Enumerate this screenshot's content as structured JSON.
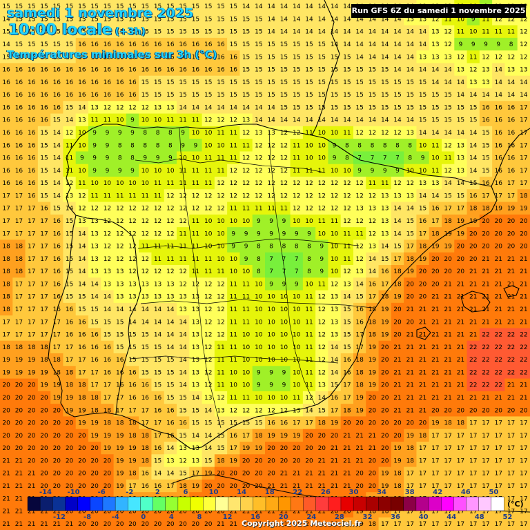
{
  "header": {
    "date": "samedi 1 novembre 2025",
    "time": "10:00 locale",
    "offset": "(+3h)",
    "subtitle": "Températures minimales sur 3h (°C)",
    "run": "Run GFS 6Z du samedi 1 novembre 2025"
  },
  "footer": {
    "copyright": "Copyright 2025 Meteociel.fr",
    "unit": "(°C)"
  },
  "legend": {
    "labels_top": [
      "-14",
      "-10",
      "-6",
      "-2",
      "2",
      "6",
      "10",
      "14",
      "18",
      "22",
      "26",
      "30",
      "34",
      "38",
      "42",
      "46",
      "50"
    ],
    "labels_bottom": [
      "-12",
      "-8",
      "-4",
      "0",
      "4",
      "8",
      "12",
      "16",
      "20",
      "24",
      "28",
      "32",
      "36",
      "40",
      "44",
      "48",
      "52"
    ],
    "colors": [
      "#06063c",
      "#0a1e6e",
      "#0a3296",
      "#0000c8",
      "#0000ff",
      "#0a46ff",
      "#1e78ff",
      "#32b4ff",
      "#46e6ff",
      "#50ffc8",
      "#64ff64",
      "#96ff32",
      "#c8ff00",
      "#f0ff00",
      "#ffff3c",
      "#ffff96",
      "#ffe66e",
      "#ffd24b",
      "#ffbe28",
      "#ffaa14",
      "#ff9600",
      "#ff7814",
      "#ff5a28",
      "#ff3c3c",
      "#ff1e1e",
      "#e60000",
      "#c80000",
      "#aa0000",
      "#8c0000",
      "#780000",
      "#8c0046",
      "#b4008c",
      "#dc00c8",
      "#ff00ff",
      "#ff50ff",
      "#ff96ff",
      "#ffc8ff",
      "#ffffff"
    ]
  },
  "temperature_grid": [
    [
      15,
      15,
      15,
      15,
      15,
      15,
      15,
      15,
      15,
      15,
      15,
      15,
      15,
      15,
      15,
      15,
      15,
      15,
      15,
      14,
      14,
      14,
      14,
      14,
      14,
      14,
      14,
      14,
      14,
      14,
      14,
      14,
      14,
      13,
      13,
      12,
      11,
      10,
      9,
      12,
      12,
      12
    ],
    [
      14,
      15,
      15,
      15,
      15,
      15,
      15,
      15,
      15,
      15,
      15,
      15,
      15,
      15,
      15,
      15,
      15,
      15,
      15,
      15,
      15,
      14,
      14,
      14,
      14,
      14,
      14,
      14,
      14,
      14,
      14,
      14,
      13,
      13,
      12,
      11,
      10,
      9,
      11,
      12,
      12,
      12
    ],
    [
      15,
      15,
      15,
      15,
      15,
      15,
      15,
      15,
      15,
      15,
      15,
      15,
      15,
      15,
      15,
      15,
      15,
      15,
      15,
      15,
      15,
      14,
      14,
      14,
      14,
      14,
      14,
      14,
      14,
      14,
      14,
      14,
      14,
      14,
      13,
      12,
      11,
      10,
      11,
      11,
      11,
      12
    ],
    [
      14,
      15,
      15,
      15,
      15,
      15,
      16,
      16,
      16,
      16,
      16,
      16,
      16,
      16,
      16,
      16,
      16,
      16,
      15,
      15,
      15,
      15,
      15,
      15,
      15,
      15,
      14,
      14,
      14,
      14,
      14,
      14,
      14,
      14,
      13,
      12,
      9,
      9,
      9,
      9,
      8,
      12
    ],
    [
      15,
      15,
      15,
      15,
      15,
      15,
      16,
      16,
      16,
      16,
      16,
      16,
      16,
      16,
      16,
      16,
      16,
      16,
      16,
      15,
      15,
      15,
      15,
      15,
      15,
      15,
      15,
      15,
      14,
      14,
      14,
      14,
      14,
      13,
      13,
      13,
      12,
      11,
      12,
      12,
      12,
      12
    ],
    [
      16,
      16,
      16,
      16,
      16,
      16,
      16,
      16,
      16,
      16,
      16,
      16,
      16,
      16,
      16,
      16,
      16,
      16,
      16,
      15,
      15,
      15,
      15,
      15,
      15,
      15,
      15,
      15,
      15,
      15,
      15,
      14,
      14,
      14,
      14,
      14,
      13,
      12,
      13,
      14,
      13,
      13
    ],
    [
      16,
      16,
      16,
      16,
      16,
      16,
      16,
      16,
      16,
      16,
      16,
      15,
      15,
      15,
      15,
      15,
      15,
      15,
      15,
      15,
      15,
      15,
      15,
      15,
      15,
      15,
      15,
      15,
      15,
      15,
      15,
      15,
      15,
      15,
      14,
      14,
      14,
      13,
      13,
      14,
      14,
      14
    ],
    [
      16,
      16,
      16,
      16,
      16,
      16,
      16,
      16,
      16,
      16,
      16,
      15,
      15,
      15,
      15,
      15,
      15,
      15,
      15,
      15,
      15,
      15,
      15,
      15,
      15,
      15,
      15,
      15,
      15,
      15,
      15,
      15,
      15,
      15,
      15,
      15,
      14,
      14,
      14,
      14,
      14,
      14
    ],
    [
      16,
      16,
      16,
      16,
      16,
      15,
      14,
      13,
      12,
      12,
      12,
      12,
      13,
      13,
      14,
      14,
      14,
      14,
      14,
      14,
      14,
      14,
      15,
      15,
      15,
      15,
      15,
      15,
      15,
      15,
      15,
      15,
      15,
      15,
      15,
      15,
      15,
      15,
      16,
      16,
      16,
      17
    ],
    [
      16,
      16,
      16,
      16,
      15,
      14,
      13,
      11,
      11,
      10,
      9,
      10,
      10,
      11,
      11,
      11,
      12,
      12,
      12,
      13,
      14,
      14,
      14,
      14,
      14,
      14,
      14,
      14,
      14,
      14,
      14,
      14,
      14,
      15,
      15,
      15,
      15,
      15,
      16,
      16,
      16,
      17
    ],
    [
      16,
      16,
      16,
      15,
      14,
      12,
      10,
      9,
      9,
      9,
      9,
      8,
      8,
      8,
      9,
      10,
      10,
      11,
      11,
      12,
      13,
      13,
      12,
      12,
      11,
      10,
      10,
      11,
      12,
      12,
      12,
      12,
      13,
      14,
      14,
      14,
      14,
      14,
      15,
      16,
      16,
      17
    ],
    [
      16,
      16,
      16,
      15,
      14,
      11,
      10,
      9,
      9,
      8,
      8,
      8,
      8,
      8,
      9,
      9,
      10,
      10,
      11,
      11,
      12,
      12,
      12,
      11,
      10,
      10,
      9,
      8,
      8,
      8,
      8,
      8,
      8,
      10,
      11,
      12,
      13,
      14,
      15,
      16,
      16,
      17
    ],
    [
      16,
      16,
      16,
      15,
      14,
      11,
      9,
      9,
      9,
      8,
      8,
      9,
      9,
      9,
      10,
      10,
      11,
      11,
      11,
      12,
      12,
      12,
      12,
      11,
      10,
      10,
      9,
      8,
      7,
      7,
      7,
      7,
      8,
      9,
      10,
      11,
      13,
      14,
      15,
      16,
      16,
      17
    ],
    [
      16,
      16,
      16,
      15,
      14,
      11,
      10,
      9,
      9,
      9,
      9,
      10,
      10,
      10,
      11,
      11,
      11,
      11,
      12,
      12,
      12,
      12,
      12,
      11,
      11,
      11,
      10,
      10,
      9,
      9,
      9,
      9,
      10,
      10,
      11,
      12,
      13,
      14,
      15,
      16,
      16,
      17
    ],
    [
      16,
      16,
      16,
      15,
      14,
      12,
      11,
      10,
      10,
      10,
      10,
      10,
      11,
      11,
      11,
      11,
      11,
      12,
      12,
      12,
      12,
      12,
      12,
      12,
      12,
      12,
      12,
      12,
      12,
      11,
      11,
      12,
      12,
      13,
      13,
      14,
      14,
      15,
      16,
      16,
      17,
      17
    ],
    [
      17,
      17,
      16,
      15,
      14,
      13,
      12,
      11,
      11,
      11,
      11,
      11,
      11,
      12,
      12,
      12,
      12,
      12,
      12,
      12,
      12,
      12,
      12,
      12,
      12,
      12,
      12,
      12,
      12,
      12,
      13,
      13,
      13,
      14,
      14,
      15,
      15,
      16,
      17,
      17,
      17,
      18
    ],
    [
      17,
      17,
      17,
      16,
      15,
      14,
      12,
      12,
      12,
      12,
      12,
      12,
      12,
      12,
      12,
      12,
      12,
      12,
      11,
      11,
      11,
      11,
      11,
      12,
      12,
      12,
      12,
      12,
      13,
      13,
      13,
      14,
      14,
      15,
      16,
      17,
      17,
      18,
      18,
      19,
      19,
      19
    ],
    [
      17,
      17,
      17,
      17,
      16,
      15,
      13,
      13,
      12,
      12,
      12,
      12,
      12,
      12,
      12,
      11,
      10,
      10,
      10,
      10,
      9,
      9,
      9,
      10,
      10,
      11,
      11,
      12,
      12,
      12,
      13,
      14,
      15,
      16,
      17,
      18,
      19,
      19,
      20,
      20,
      20,
      20
    ],
    [
      17,
      17,
      17,
      17,
      16,
      15,
      14,
      13,
      12,
      12,
      12,
      12,
      12,
      12,
      11,
      11,
      10,
      10,
      9,
      9,
      9,
      9,
      9,
      9,
      9,
      10,
      10,
      11,
      11,
      12,
      13,
      14,
      15,
      17,
      18,
      19,
      19,
      20,
      20,
      20,
      20,
      20
    ],
    [
      18,
      18,
      17,
      17,
      16,
      15,
      14,
      13,
      12,
      12,
      12,
      11,
      11,
      11,
      11,
      11,
      10,
      10,
      9,
      9,
      8,
      8,
      8,
      8,
      8,
      9,
      10,
      11,
      12,
      13,
      14,
      15,
      17,
      18,
      19,
      19,
      20,
      20,
      20,
      20,
      20,
      20
    ],
    [
      18,
      18,
      17,
      17,
      16,
      15,
      14,
      13,
      12,
      12,
      12,
      12,
      11,
      11,
      11,
      11,
      11,
      10,
      10,
      9,
      8,
      7,
      7,
      7,
      8,
      9,
      10,
      11,
      12,
      14,
      15,
      17,
      18,
      19,
      20,
      20,
      20,
      20,
      21,
      21,
      21,
      21
    ],
    [
      18,
      18,
      17,
      17,
      16,
      15,
      14,
      13,
      13,
      13,
      12,
      12,
      12,
      12,
      12,
      11,
      11,
      11,
      10,
      10,
      8,
      7,
      7,
      7,
      8,
      9,
      10,
      12,
      13,
      14,
      16,
      18,
      19,
      20,
      20,
      20,
      20,
      21,
      21,
      21,
      21,
      21
    ],
    [
      18,
      17,
      17,
      17,
      16,
      15,
      14,
      14,
      13,
      13,
      13,
      13,
      13,
      13,
      12,
      12,
      12,
      12,
      11,
      11,
      10,
      9,
      9,
      9,
      10,
      11,
      12,
      13,
      14,
      16,
      17,
      18,
      20,
      20,
      20,
      21,
      21,
      21,
      21,
      21,
      21,
      21
    ],
    [
      18,
      17,
      17,
      17,
      16,
      15,
      15,
      14,
      14,
      13,
      13,
      13,
      13,
      13,
      13,
      13,
      12,
      12,
      11,
      11,
      10,
      10,
      10,
      10,
      11,
      12,
      13,
      14,
      15,
      17,
      18,
      19,
      20,
      20,
      21,
      21,
      21,
      21,
      21,
      21,
      21,
      21
    ],
    [
      18,
      17,
      17,
      17,
      16,
      16,
      15,
      15,
      14,
      14,
      14,
      14,
      14,
      14,
      13,
      13,
      12,
      12,
      11,
      11,
      10,
      10,
      10,
      10,
      11,
      12,
      13,
      15,
      16,
      18,
      19,
      20,
      21,
      21,
      21,
      21,
      21,
      21,
      21,
      21,
      21,
      21
    ],
    [
      17,
      17,
      17,
      17,
      17,
      16,
      16,
      15,
      15,
      15,
      14,
      14,
      14,
      14,
      14,
      13,
      12,
      12,
      11,
      11,
      10,
      10,
      10,
      10,
      11,
      12,
      13,
      15,
      16,
      18,
      19,
      20,
      20,
      21,
      21,
      21,
      21,
      21,
      21,
      21,
      21,
      21
    ],
    [
      17,
      17,
      17,
      17,
      17,
      16,
      16,
      16,
      15,
      15,
      15,
      15,
      14,
      14,
      14,
      13,
      12,
      12,
      11,
      10,
      10,
      10,
      10,
      10,
      11,
      12,
      13,
      15,
      17,
      18,
      19,
      20,
      21,
      21,
      21,
      21,
      21,
      21,
      22,
      22,
      22,
      22
    ],
    [
      18,
      18,
      18,
      18,
      17,
      17,
      16,
      16,
      16,
      15,
      15,
      15,
      15,
      14,
      14,
      13,
      12,
      11,
      11,
      10,
      10,
      10,
      10,
      10,
      11,
      12,
      14,
      15,
      17,
      19,
      20,
      21,
      21,
      21,
      21,
      21,
      21,
      22,
      22,
      22,
      22,
      22
    ],
    [
      19,
      19,
      19,
      18,
      18,
      17,
      17,
      16,
      16,
      16,
      15,
      15,
      15,
      15,
      14,
      13,
      12,
      11,
      11,
      10,
      10,
      10,
      10,
      10,
      11,
      12,
      14,
      16,
      18,
      19,
      20,
      21,
      21,
      21,
      21,
      21,
      21,
      22,
      22,
      22,
      22,
      22
    ],
    [
      19,
      19,
      19,
      19,
      18,
      18,
      17,
      17,
      16,
      16,
      16,
      15,
      15,
      15,
      14,
      13,
      12,
      11,
      10,
      10,
      9,
      9,
      9,
      10,
      11,
      12,
      14,
      16,
      18,
      19,
      20,
      21,
      21,
      21,
      21,
      21,
      21,
      22,
      22,
      22,
      22,
      22
    ],
    [
      20,
      20,
      20,
      19,
      19,
      18,
      18,
      17,
      17,
      16,
      16,
      16,
      15,
      15,
      14,
      13,
      12,
      11,
      10,
      10,
      9,
      9,
      9,
      10,
      11,
      13,
      15,
      17,
      18,
      19,
      20,
      21,
      21,
      21,
      21,
      21,
      21,
      22,
      22,
      22,
      21,
      21
    ],
    [
      20,
      20,
      20,
      20,
      19,
      19,
      18,
      18,
      17,
      17,
      16,
      16,
      16,
      15,
      15,
      14,
      13,
      12,
      11,
      11,
      10,
      10,
      10,
      11,
      12,
      14,
      16,
      17,
      19,
      20,
      20,
      21,
      21,
      21,
      21,
      21,
      21,
      21,
      21,
      21,
      21,
      21
    ],
    [
      20,
      20,
      20,
      20,
      20,
      19,
      19,
      18,
      18,
      17,
      17,
      17,
      16,
      16,
      15,
      15,
      14,
      13,
      12,
      12,
      12,
      12,
      12,
      13,
      14,
      15,
      17,
      18,
      19,
      20,
      20,
      21,
      21,
      21,
      20,
      20,
      20,
      20,
      20,
      20,
      20,
      20
    ],
    [
      20,
      20,
      20,
      20,
      20,
      20,
      19,
      19,
      18,
      18,
      18,
      17,
      17,
      16,
      16,
      15,
      15,
      15,
      15,
      15,
      15,
      16,
      16,
      17,
      17,
      18,
      19,
      20,
      20,
      20,
      20,
      20,
      20,
      20,
      19,
      18,
      18,
      17,
      17,
      17,
      17,
      17
    ],
    [
      20,
      20,
      20,
      20,
      20,
      20,
      20,
      19,
      19,
      19,
      18,
      18,
      17,
      16,
      15,
      14,
      14,
      15,
      16,
      17,
      18,
      19,
      19,
      19,
      20,
      20,
      20,
      21,
      21,
      21,
      20,
      20,
      19,
      18,
      17,
      17,
      17,
      17,
      17,
      17,
      17,
      17
    ],
    [
      20,
      20,
      20,
      20,
      20,
      20,
      20,
      20,
      19,
      19,
      19,
      18,
      16,
      14,
      13,
      13,
      14,
      15,
      17,
      19,
      19,
      20,
      20,
      20,
      20,
      20,
      21,
      21,
      21,
      21,
      20,
      19,
      18,
      17,
      17,
      17,
      17,
      17,
      17,
      17,
      17,
      17
    ],
    [
      21,
      21,
      20,
      20,
      20,
      20,
      20,
      20,
      20,
      19,
      19,
      18,
      15,
      13,
      12,
      13,
      15,
      18,
      19,
      20,
      20,
      20,
      20,
      20,
      20,
      21,
      21,
      21,
      21,
      20,
      20,
      19,
      18,
      17,
      17,
      17,
      17,
      17,
      17,
      17,
      17,
      17
    ],
    [
      21,
      21,
      21,
      20,
      20,
      20,
      20,
      20,
      20,
      19,
      18,
      16,
      14,
      14,
      15,
      17,
      19,
      20,
      20,
      20,
      20,
      20,
      21,
      21,
      21,
      21,
      21,
      21,
      20,
      20,
      19,
      18,
      17,
      17,
      17,
      17,
      17,
      17,
      17,
      17,
      17,
      17
    ],
    [
      21,
      21,
      21,
      20,
      20,
      20,
      20,
      20,
      20,
      19,
      17,
      16,
      16,
      17,
      18,
      19,
      20,
      20,
      20,
      20,
      20,
      21,
      21,
      21,
      21,
      21,
      21,
      21,
      20,
      20,
      19,
      18,
      17,
      17,
      17,
      17,
      17,
      17,
      17,
      17,
      17,
      17
    ],
    [
      21,
      21,
      21,
      21,
      20,
      20,
      20,
      20,
      20,
      19,
      18,
      18,
      18,
      19,
      19,
      20,
      20,
      20,
      20,
      20,
      21,
      21,
      21,
      21,
      21,
      21,
      21,
      20,
      20,
      19,
      18,
      18,
      17,
      17,
      17,
      17,
      17,
      17,
      17,
      17,
      17,
      17
    ],
    [
      21,
      21,
      21,
      21,
      21,
      20,
      20,
      20,
      20,
      20,
      20,
      20,
      20,
      20,
      20,
      20,
      20,
      20,
      21,
      21,
      21,
      21,
      21,
      21,
      21,
      21,
      20,
      20,
      19,
      18,
      18,
      17,
      17,
      17,
      17,
      17,
      17,
      17,
      17,
      17,
      17,
      17
    ],
    [
      21,
      21,
      21,
      21,
      21,
      21,
      20,
      20,
      20,
      20,
      20,
      20,
      20,
      20,
      20,
      20,
      20,
      21,
      21,
      21,
      21,
      21,
      21,
      21,
      21,
      20,
      20,
      19,
      19,
      18,
      17,
      17,
      17,
      17,
      17,
      17,
      17,
      17,
      17,
      17,
      17,
      17
    ]
  ]
}
